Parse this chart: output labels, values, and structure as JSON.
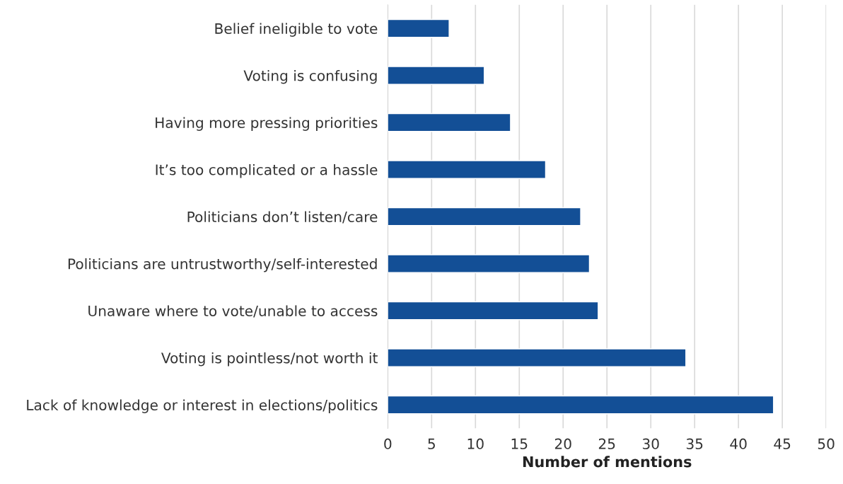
{
  "chart_data": {
    "type": "bar",
    "orientation": "horizontal",
    "categories": [
      "Belief ineligible to vote",
      "Voting is confusing",
      "Having more pressing priorities",
      "It’s too complicated or a hassle",
      "Politicians don’t listen/care",
      "Politicians are untrustworthy/self-interested",
      "Unaware where to vote/unable to access",
      "Voting is pointless/not worth it",
      "Lack of knowledge or interest in elections/politics"
    ],
    "values": [
      7,
      11,
      14,
      18,
      22,
      23,
      24,
      34,
      44
    ],
    "color": "#134f96",
    "xlabel": "Number of mentions",
    "xlim": [
      0,
      50
    ],
    "xticks": [
      0,
      5,
      10,
      15,
      20,
      25,
      30,
      35,
      40,
      45,
      50
    ],
    "grid": "x"
  }
}
